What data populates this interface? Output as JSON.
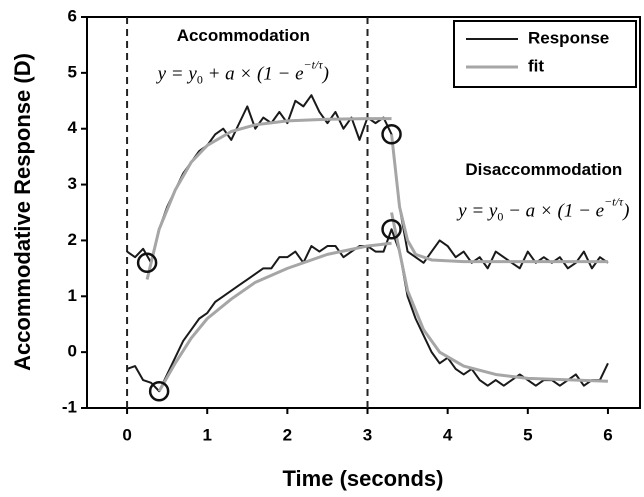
{
  "chart_data": {
    "type": "line",
    "xlabel": "Time (seconds)",
    "ylabel": "Accommodative Response (D)",
    "xlim": [
      -0.5,
      6.4
    ],
    "ylim": [
      -1,
      6
    ],
    "xticks": [
      0,
      1,
      2,
      3,
      4,
      5,
      6
    ],
    "yticks": [
      -1,
      0,
      1,
      2,
      3,
      4,
      5,
      6
    ],
    "legend": "upper right",
    "vlines": [
      0,
      3
    ],
    "series": [
      {
        "name": "Response",
        "color": "#1a1a1a",
        "width": 2,
        "lines": [
          {
            "x": [
              0,
              0.1,
              0.2,
              0.3,
              0.4,
              0.5,
              0.6,
              0.7,
              0.8,
              0.9,
              1.0,
              1.1,
              1.2,
              1.3,
              1.4,
              1.5,
              1.6,
              1.7,
              1.8,
              1.9,
              2.0,
              2.1,
              2.2,
              2.3,
              2.4,
              2.5,
              2.6,
              2.7,
              2.8,
              2.9,
              3.0,
              3.1,
              3.2,
              3.3,
              3.4,
              3.5,
              3.6,
              3.7,
              3.8,
              3.9,
              4.0,
              4.1,
              4.2,
              4.3,
              4.4,
              4.5,
              4.6,
              4.7,
              4.8,
              4.9,
              5.0,
              5.1,
              5.2,
              5.3,
              5.4,
              5.5,
              5.6,
              5.7,
              5.8,
              5.9,
              6.0
            ],
            "values": [
              1.8,
              1.7,
              1.85,
              1.6,
              2.2,
              2.6,
              2.9,
              3.2,
              3.4,
              3.6,
              3.7,
              3.9,
              4.0,
              3.8,
              4.1,
              4.4,
              4.0,
              4.2,
              4.1,
              4.3,
              4.1,
              4.5,
              4.4,
              4.6,
              4.3,
              4.1,
              4.3,
              4.0,
              4.2,
              3.8,
              4.2,
              4.1,
              4.2,
              3.9,
              2.6,
              1.8,
              1.7,
              1.6,
              1.8,
              2.0,
              1.9,
              1.7,
              1.8,
              1.6,
              1.7,
              1.5,
              1.8,
              1.7,
              1.6,
              1.5,
              1.8,
              1.6,
              1.7,
              1.6,
              1.7,
              1.5,
              1.6,
              1.8,
              1.5,
              1.7,
              1.6
            ]
          },
          {
            "x": [
              0,
              0.1,
              0.2,
              0.3,
              0.4,
              0.5,
              0.6,
              0.7,
              0.8,
              0.9,
              1.0,
              1.1,
              1.2,
              1.3,
              1.4,
              1.5,
              1.6,
              1.7,
              1.8,
              1.9,
              2.0,
              2.1,
              2.2,
              2.3,
              2.4,
              2.5,
              2.6,
              2.7,
              2.8,
              2.9,
              3.0,
              3.1,
              3.2,
              3.3,
              3.4,
              3.5,
              3.6,
              3.7,
              3.8,
              3.9,
              4.0,
              4.1,
              4.2,
              4.3,
              4.4,
              4.5,
              4.6,
              4.7,
              4.8,
              4.9,
              5.0,
              5.1,
              5.2,
              5.3,
              5.4,
              5.5,
              5.6,
              5.7,
              5.8,
              5.9,
              6.0
            ],
            "values": [
              -0.3,
              -0.25,
              -0.5,
              -0.55,
              -0.7,
              -0.4,
              -0.1,
              0.2,
              0.4,
              0.6,
              0.7,
              0.9,
              1.0,
              1.1,
              1.2,
              1.3,
              1.4,
              1.5,
              1.5,
              1.7,
              1.7,
              1.8,
              1.6,
              1.9,
              1.8,
              1.9,
              1.9,
              1.7,
              1.8,
              1.9,
              1.9,
              1.8,
              1.8,
              2.2,
              1.8,
              1.0,
              0.6,
              0.3,
              0.0,
              -0.2,
              -0.1,
              -0.3,
              -0.4,
              -0.3,
              -0.5,
              -0.6,
              -0.5,
              -0.6,
              -0.5,
              -0.4,
              -0.5,
              -0.6,
              -0.5,
              -0.5,
              -0.6,
              -0.5,
              -0.4,
              -0.6,
              -0.5,
              -0.5,
              -0.2
            ]
          }
        ]
      },
      {
        "name": "fit",
        "color": "#a6a6a6",
        "width": 3,
        "lines": [
          {
            "x": [
              0.25,
              0.4,
              0.6,
              0.8,
              1.0,
              1.3,
              1.6,
              2.0,
              2.5,
              3.0,
              3.3
            ],
            "values": [
              1.3,
              2.2,
              2.9,
              3.4,
              3.7,
              3.95,
              4.07,
              4.14,
              4.17,
              4.18,
              4.18
            ]
          },
          {
            "x": [
              3.3,
              3.4,
              3.5,
              3.6,
              3.8,
              4.2,
              6.0
            ],
            "values": [
              3.9,
              2.6,
              2.0,
              1.75,
              1.65,
              1.62,
              1.62
            ]
          },
          {
            "x": [
              0.4,
              0.6,
              0.8,
              1.0,
              1.3,
              1.6,
              2.0,
              2.5,
              3.0,
              3.3
            ],
            "values": [
              -0.7,
              -0.2,
              0.25,
              0.6,
              0.95,
              1.25,
              1.5,
              1.75,
              1.9,
              1.95
            ]
          },
          {
            "x": [
              3.3,
              3.5,
              3.7,
              3.9,
              4.2,
              4.6,
              5.0,
              6.0
            ],
            "values": [
              2.5,
              1.1,
              0.4,
              0.0,
              -0.25,
              -0.4,
              -0.47,
              -0.52
            ]
          }
        ]
      }
    ],
    "markers": {
      "x": [
        0.25,
        0.4,
        3.3,
        3.3
      ],
      "values": [
        1.6,
        -0.7,
        3.9,
        2.2
      ]
    },
    "annotations": [
      {
        "text": "Accommodation",
        "x": 1.45,
        "y": 5.65
      },
      {
        "text": "Disaccommodation",
        "x": 5.2,
        "y": 3.25
      }
    ],
    "equations": [
      {
        "x": 1.45,
        "y": 4.95,
        "parts": [
          {
            "text": "y = y"
          },
          {
            "text": "0",
            "style": "sub"
          },
          {
            "text": " + a × (1 − e"
          },
          {
            "text": "−t/τ",
            "style": "sup"
          },
          {
            "text": ")"
          }
        ]
      },
      {
        "x": 5.2,
        "y": 2.5,
        "parts": [
          {
            "text": "y = y"
          },
          {
            "text": "0",
            "style": "sub"
          },
          {
            "text": " − a × (1 − e"
          },
          {
            "text": "−t/τ",
            "style": "sup"
          },
          {
            "text": ")"
          }
        ]
      }
    ]
  }
}
